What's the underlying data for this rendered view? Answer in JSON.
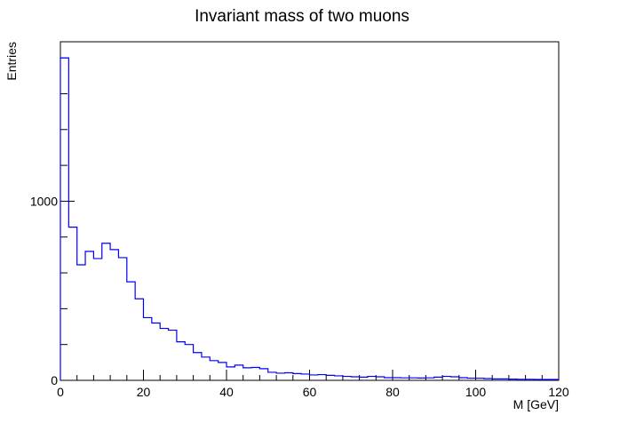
{
  "chart_data": {
    "type": "bar",
    "title": "Invariant mass of two muons",
    "xlabel": "M [GeV]",
    "ylabel": "Entries",
    "xlim": [
      0,
      120
    ],
    "ylim": [
      0,
      1890
    ],
    "grid": false,
    "legend": null,
    "line_color": "#0000ff",
    "bin_width": 2,
    "x_ticks": [
      "0",
      "20",
      "40",
      "60",
      "80",
      "100",
      "120"
    ],
    "y_ticks": [
      "0",
      "1000"
    ],
    "bin_edges": [
      0,
      2,
      4,
      6,
      8,
      10,
      12,
      14,
      16,
      18,
      20,
      22,
      24,
      26,
      28,
      30,
      32,
      34,
      36,
      38,
      40,
      42,
      44,
      46,
      48,
      50,
      52,
      54,
      56,
      58,
      60,
      62,
      64,
      66,
      68,
      70,
      72,
      74,
      76,
      78,
      80,
      82,
      84,
      86,
      88,
      90,
      92,
      94,
      96,
      98,
      100,
      102,
      104,
      106,
      108,
      110,
      112,
      114,
      116,
      118,
      120
    ],
    "values": [
      1800,
      855,
      645,
      720,
      680,
      765,
      730,
      685,
      550,
      455,
      350,
      320,
      290,
      280,
      215,
      200,
      155,
      130,
      110,
      100,
      75,
      85,
      70,
      72,
      65,
      45,
      40,
      42,
      38,
      35,
      30,
      32,
      28,
      25,
      22,
      20,
      18,
      22,
      20,
      15,
      15,
      14,
      14,
      13,
      14,
      18,
      22,
      20,
      15,
      12,
      12,
      10,
      8,
      8,
      7,
      6,
      6,
      5,
      5,
      5
    ]
  }
}
